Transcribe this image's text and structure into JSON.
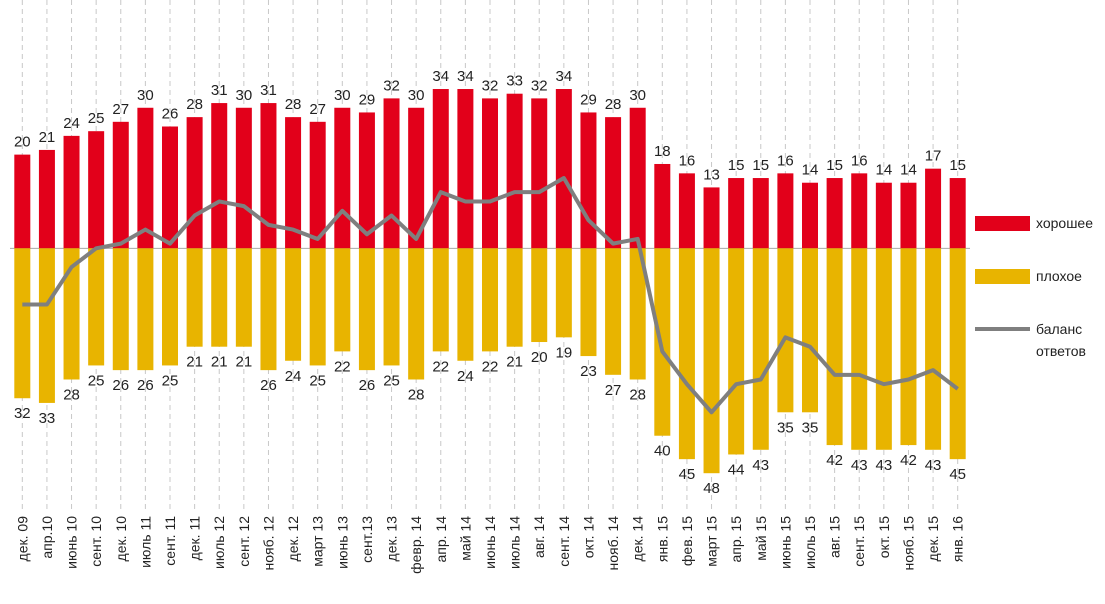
{
  "chart_data": {
    "type": "bar",
    "categories": [
      "дек. 09",
      "апр.10",
      "июнь 10",
      "сент. 10",
      "дек. 10",
      "июль 11",
      "сент. 11",
      "дек. 11",
      "июль 12",
      "сент. 12",
      "нояб. 12",
      "дек. 12",
      "март 13",
      "июнь 13",
      "сент.13",
      "дек. 13",
      "февр. 14",
      "апр. 14",
      "май 14",
      "июнь 14",
      "июль 14",
      "авг. 14",
      "сент. 14",
      "окт. 14",
      "нояб. 14",
      "дек. 14",
      "янв. 15",
      "фев. 15",
      "март 15",
      "апр. 15",
      "май 15",
      "июнь 15",
      "июль 15",
      "авг. 15",
      "сент. 15",
      "окт. 15",
      "нояб. 15",
      "дек. 15",
      "янв. 16"
    ],
    "series": [
      {
        "name": "хорошее",
        "color": "#e2001a",
        "kind": "bar",
        "direction": "up",
        "values": [
          20,
          21,
          24,
          25,
          27,
          30,
          26,
          28,
          31,
          30,
          31,
          28,
          27,
          30,
          29,
          32,
          30,
          34,
          34,
          32,
          33,
          32,
          34,
          29,
          28,
          30,
          18,
          16,
          13,
          15,
          15,
          16,
          14,
          15,
          16,
          14,
          14,
          17,
          15
        ]
      },
      {
        "name": "плохое",
        "color": "#e8b400",
        "kind": "bar",
        "direction": "down",
        "values": [
          32,
          33,
          28,
          25,
          26,
          26,
          25,
          21,
          21,
          21,
          26,
          24,
          25,
          22,
          26,
          25,
          28,
          22,
          24,
          22,
          21,
          20,
          19,
          23,
          27,
          28,
          40,
          45,
          48,
          44,
          43,
          35,
          35,
          42,
          43,
          43,
          42,
          43,
          45
        ]
      },
      {
        "name": "баланс ответов",
        "color": "#7f7f7f",
        "kind": "line",
        "values": [
          -12,
          -12,
          -4,
          0,
          1,
          4,
          1,
          7,
          10,
          9,
          5,
          4,
          2,
          8,
          3,
          7,
          2,
          12,
          10,
          10,
          12,
          12,
          15,
          6,
          1,
          2,
          -22,
          -29,
          -35,
          -29,
          -28,
          -19,
          -21,
          -27,
          -27,
          -29,
          -28,
          -26,
          -30
        ]
      }
    ],
    "ylim": [
      -55,
      53
    ],
    "grid": true,
    "legend": "right"
  }
}
